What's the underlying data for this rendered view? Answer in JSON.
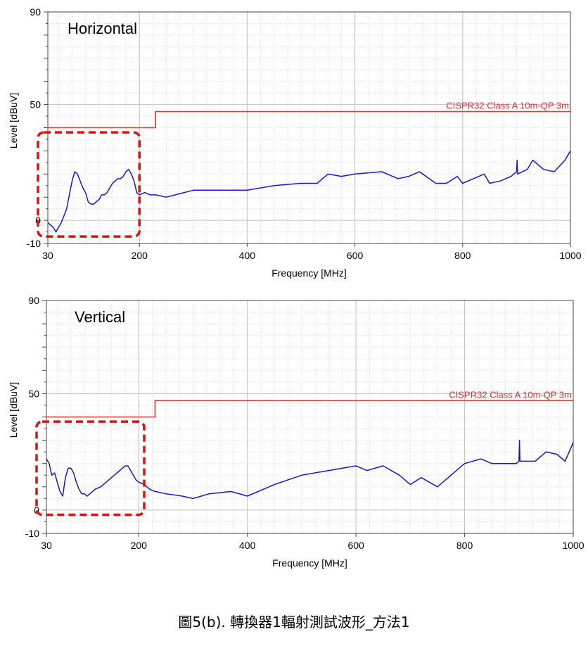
{
  "caption": "圖5(b). 轉換器1輻射測試波形_方法1",
  "colors": {
    "trace": "#1515e6",
    "limit": "#ee3333",
    "box": "#e01010",
    "grid_major": "#c0c0c0",
    "grid_minor": "#d8d8d8"
  },
  "chart_data": [
    {
      "type": "line",
      "title": "Horizontal",
      "xlabel": "Frequency [MHz]",
      "ylabel": "Level [dBuV]",
      "xlim": [
        30,
        1000
      ],
      "ylim": [
        -10,
        90
      ],
      "xticks": [
        "30",
        "200",
        "400",
        "600",
        "800",
        "1000"
      ],
      "yticks": [
        "90",
        "50",
        "0",
        "-10"
      ],
      "grid": true,
      "limit_line": {
        "name": "CISPR32 Class A 10m-QP 3m",
        "points": [
          [
            30,
            40
          ],
          [
            230,
            40
          ],
          [
            230,
            47
          ],
          [
            1000,
            47
          ]
        ]
      },
      "highlight_box": {
        "x_range": [
          30,
          200
        ],
        "y_range": [
          -7,
          38
        ]
      },
      "series": [
        {
          "values": [
            [
              30,
              -1
            ],
            [
              35,
              -2
            ],
            [
              40,
              -3
            ],
            [
              45,
              -5
            ],
            [
              50,
              -3
            ],
            [
              55,
              -1
            ],
            [
              60,
              2
            ],
            [
              65,
              5
            ],
            [
              70,
              11
            ],
            [
              75,
              17
            ],
            [
              80,
              21
            ],
            [
              85,
              20
            ],
            [
              90,
              17
            ],
            [
              95,
              14
            ],
            [
              100,
              12
            ],
            [
              105,
              8
            ],
            [
              110,
              7
            ],
            [
              115,
              7
            ],
            [
              120,
              8
            ],
            [
              125,
              9
            ],
            [
              130,
              11
            ],
            [
              135,
              11
            ],
            [
              140,
              12
            ],
            [
              145,
              14
            ],
            [
              150,
              16
            ],
            [
              155,
              17
            ],
            [
              160,
              18
            ],
            [
              165,
              18
            ],
            [
              170,
              19
            ],
            [
              175,
              21
            ],
            [
              180,
              22
            ],
            [
              185,
              20
            ],
            [
              190,
              17
            ],
            [
              195,
              12
            ],
            [
              200,
              11
            ],
            [
              210,
              12
            ],
            [
              220,
              11
            ],
            [
              230,
              11
            ],
            [
              250,
              10
            ],
            [
              300,
              13
            ],
            [
              350,
              13
            ],
            [
              400,
              13
            ],
            [
              450,
              15
            ],
            [
              500,
              16
            ],
            [
              530,
              16
            ],
            [
              550,
              20
            ],
            [
              575,
              19
            ],
            [
              600,
              20
            ],
            [
              650,
              21
            ],
            [
              680,
              18
            ],
            [
              700,
              19
            ],
            [
              720,
              21
            ],
            [
              750,
              16
            ],
            [
              770,
              16
            ],
            [
              790,
              19
            ],
            [
              800,
              16
            ],
            [
              820,
              18
            ],
            [
              840,
              20
            ],
            [
              850,
              16
            ],
            [
              870,
              17
            ],
            [
              890,
              19
            ],
            [
              900,
              21
            ],
            [
              901,
              26
            ],
            [
              902,
              20
            ],
            [
              920,
              22
            ],
            [
              930,
              26
            ],
            [
              950,
              22
            ],
            [
              970,
              21
            ],
            [
              990,
              26
            ],
            [
              1000,
              30
            ]
          ]
        }
      ]
    },
    {
      "type": "line",
      "title": "Vertical",
      "xlabel": "Frequency [MHz]",
      "ylabel": "Level [dBuV]",
      "xlim": [
        30,
        1000
      ],
      "ylim": [
        -10,
        90
      ],
      "xticks": [
        "30",
        "200",
        "400",
        "600",
        "800",
        "1000"
      ],
      "yticks": [
        "90",
        "50",
        "0",
        "-10"
      ],
      "grid": true,
      "limit_line": {
        "name": "CISPR32 Class A 10m-QP 3m",
        "points": [
          [
            30,
            40
          ],
          [
            230,
            40
          ],
          [
            230,
            47
          ],
          [
            1000,
            47
          ]
        ]
      },
      "highlight_box": {
        "x_range": [
          30,
          210
        ],
        "y_range": [
          -2,
          38
        ]
      },
      "series": [
        {
          "values": [
            [
              30,
              22
            ],
            [
              35,
              20
            ],
            [
              40,
              15
            ],
            [
              45,
              16
            ],
            [
              50,
              12
            ],
            [
              55,
              8
            ],
            [
              60,
              6
            ],
            [
              65,
              14
            ],
            [
              70,
              18
            ],
            [
              75,
              18
            ],
            [
              80,
              16
            ],
            [
              85,
              12
            ],
            [
              90,
              9
            ],
            [
              95,
              7
            ],
            [
              100,
              7
            ],
            [
              105,
              6
            ],
            [
              110,
              7
            ],
            [
              120,
              9
            ],
            [
              130,
              10
            ],
            [
              140,
              12
            ],
            [
              150,
              14
            ],
            [
              160,
              16
            ],
            [
              170,
              18
            ],
            [
              175,
              19
            ],
            [
              180,
              19
            ],
            [
              185,
              17
            ],
            [
              190,
              15
            ],
            [
              195,
              13
            ],
            [
              200,
              12
            ],
            [
              210,
              11
            ],
            [
              220,
              9
            ],
            [
              230,
              8
            ],
            [
              250,
              7
            ],
            [
              280,
              6
            ],
            [
              300,
              5
            ],
            [
              330,
              7
            ],
            [
              370,
              8
            ],
            [
              400,
              6
            ],
            [
              450,
              11
            ],
            [
              500,
              15
            ],
            [
              550,
              17
            ],
            [
              600,
              19
            ],
            [
              620,
              17
            ],
            [
              650,
              19
            ],
            [
              680,
              15
            ],
            [
              700,
              11
            ],
            [
              720,
              14
            ],
            [
              750,
              10
            ],
            [
              780,
              16
            ],
            [
              800,
              20
            ],
            [
              830,
              22
            ],
            [
              850,
              20
            ],
            [
              880,
              20
            ],
            [
              895,
              20
            ],
            [
              900,
              21
            ],
            [
              901,
              30
            ],
            [
              902,
              21
            ],
            [
              930,
              21
            ],
            [
              950,
              25
            ],
            [
              970,
              24
            ],
            [
              985,
              21
            ],
            [
              1000,
              29
            ]
          ]
        }
      ]
    }
  ]
}
